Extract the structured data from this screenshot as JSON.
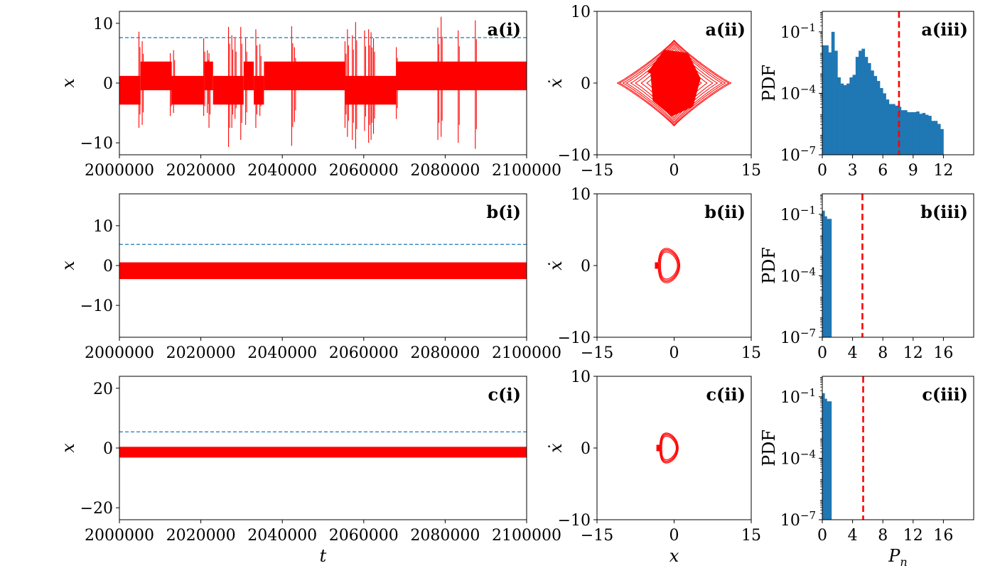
{
  "colors": {
    "series": "#ff0000",
    "threshold_line": "#1f77b4",
    "histogram": "#1f77b4",
    "threshold_marker": "#ff0000"
  },
  "chart_data": [
    {
      "id": "a-i",
      "type": "line",
      "panel_label": "a(i)",
      "xlabel": "",
      "ylabel": "x",
      "xlim": [
        2000000,
        2100000
      ],
      "ylim": [
        -12,
        12
      ],
      "xticks": [
        2000000,
        2020000,
        2040000,
        2060000,
        2080000,
        2100000
      ],
      "xtick_labels": [
        "2000000",
        "2020000",
        "2040000",
        "2060000",
        "2080000",
        "2100000"
      ],
      "yticks": [
        -10,
        0,
        10
      ],
      "ytick_labels": [
        "−10",
        "0",
        "10"
      ],
      "threshold": 7.6,
      "regime_levels": {
        "low": [
          -3.6,
          1.2
        ],
        "high": [
          -1.2,
          3.6
        ]
      },
      "regimes": [
        {
          "t0": 2000000,
          "t1": 2005200,
          "mode": "low"
        },
        {
          "t0": 2005200,
          "t1": 2012800,
          "mode": "high"
        },
        {
          "t0": 2012800,
          "t1": 2020800,
          "mode": "low"
        },
        {
          "t0": 2020800,
          "t1": 2023000,
          "mode": "high"
        },
        {
          "t0": 2023000,
          "t1": 2030500,
          "mode": "low"
        },
        {
          "t0": 2030500,
          "t1": 2033000,
          "mode": "high"
        },
        {
          "t0": 2033000,
          "t1": 2035500,
          "mode": "low"
        },
        {
          "t0": 2035500,
          "t1": 2042500,
          "mode": "high"
        },
        {
          "t0": 2042500,
          "t1": 2055500,
          "mode": "high"
        },
        {
          "t0": 2055500,
          "t1": 2068000,
          "mode": "low"
        },
        {
          "t0": 2068000,
          "t1": 2100000,
          "mode": "high"
        }
      ],
      "bursts": [
        {
          "t": 2004800,
          "min": -7.5,
          "max": 8.6
        },
        {
          "t": 2005600,
          "min": -7.0,
          "max": 7.0
        },
        {
          "t": 2012500,
          "min": -5.5,
          "max": 5.0
        },
        {
          "t": 2013300,
          "min": -5.0,
          "max": 5.5
        },
        {
          "t": 2020700,
          "min": -5.5,
          "max": 7.5
        },
        {
          "t": 2021600,
          "min": -5.0,
          "max": 5.5
        },
        {
          "t": 2022000,
          "min": -7.5,
          "max": 5.0
        },
        {
          "t": 2026800,
          "min": -10.7,
          "max": 9.4
        },
        {
          "t": 2027600,
          "min": -7.5,
          "max": 8.0
        },
        {
          "t": 2028400,
          "min": -6.0,
          "max": 7.5
        },
        {
          "t": 2029800,
          "min": -9.5,
          "max": 9.4
        },
        {
          "t": 2031000,
          "min": -7.0,
          "max": 7.5
        },
        {
          "t": 2033500,
          "min": -7.5,
          "max": 9.0
        },
        {
          "t": 2034500,
          "min": -5.5,
          "max": 6.5
        },
        {
          "t": 2042300,
          "min": -10.5,
          "max": 9.5
        },
        {
          "t": 2043000,
          "min": -6.5,
          "max": 6.0
        },
        {
          "t": 2055400,
          "min": -7.5,
          "max": 7.0
        },
        {
          "t": 2056000,
          "min": -9.0,
          "max": 9.0
        },
        {
          "t": 2057200,
          "min": -9.5,
          "max": 8.0
        },
        {
          "t": 2058000,
          "min": -11.0,
          "max": 10.2
        },
        {
          "t": 2060200,
          "min": -8.0,
          "max": 8.8
        },
        {
          "t": 2061200,
          "min": -10.0,
          "max": 9.0
        },
        {
          "t": 2061800,
          "min": -9.5,
          "max": 8.5
        },
        {
          "t": 2062400,
          "min": -8.5,
          "max": 7.5
        },
        {
          "t": 2068000,
          "min": -6.0,
          "max": 6.0
        },
        {
          "t": 2078200,
          "min": -9.5,
          "max": 9.3
        },
        {
          "t": 2079000,
          "min": -9.0,
          "max": 11.1
        },
        {
          "t": 2083200,
          "min": -10.0,
          "max": 8.8
        },
        {
          "t": 2087400,
          "min": -11.0,
          "max": 10.5
        }
      ]
    },
    {
      "id": "a-ii",
      "type": "line",
      "panel_label": "a(ii)",
      "xlabel": "",
      "ylabel": "ẋ",
      "xlim": [
        -15,
        15
      ],
      "ylim": [
        -10,
        10
      ],
      "xticks": [
        -15,
        0,
        15
      ],
      "xtick_labels": [
        "−15",
        "0",
        "15"
      ],
      "yticks": [
        -10,
        0,
        10
      ],
      "ytick_labels": [
        "−10",
        "0",
        "10"
      ],
      "attractor": "two-scroll",
      "x_amplitude": 11.1,
      "v_amplitude": 6.0
    },
    {
      "id": "a-iii",
      "type": "bar",
      "panel_label": "a(iii)",
      "xlabel": "",
      "ylabel": "PDF",
      "yscale": "log",
      "xlim": [
        0,
        15
      ],
      "ylim": [
        1e-07,
        1
      ],
      "xticks": [
        0,
        3,
        6,
        9,
        12
      ],
      "xtick_labels": [
        "0",
        "3",
        "6",
        "9",
        "12"
      ],
      "yticks": [
        1e-07,
        0.0001,
        0.1
      ],
      "ytick_labels": [
        "10^-7",
        "10^-4",
        "10^-1"
      ],
      "bin_width": 0.3,
      "threshold": 7.6,
      "bin_values": [
        0.022,
        0.022,
        0.01,
        0.1,
        0.012,
        0.0006,
        0.0003,
        0.00025,
        0.0003,
        0.0006,
        0.0008,
        0.006,
        0.012,
        0.015,
        0.006,
        0.003,
        0.0013,
        0.0007,
        0.0004,
        0.00018,
        0.0001,
        5e-05,
        3e-05,
        3e-05,
        2.5e-05,
        2.2e-05,
        1.5e-05,
        1.5e-05,
        1.2e-05,
        1.2e-05,
        1.2e-05,
        1.3e-05,
        1e-05,
        1.1e-05,
        9e-06,
        8e-06,
        4.5e-06,
        4.5e-06,
        3.2e-06,
        1.8e-06
      ]
    },
    {
      "id": "b-i",
      "type": "line",
      "panel_label": "b(i)",
      "xlabel": "",
      "ylabel": "x",
      "xlim": [
        2000000,
        2100000
      ],
      "ylim": [
        -18,
        18
      ],
      "xticks": [
        2000000,
        2020000,
        2040000,
        2060000,
        2080000,
        2100000
      ],
      "xtick_labels": [
        "2000000",
        "2020000",
        "2040000",
        "2060000",
        "2080000",
        "2100000"
      ],
      "yticks": [
        -10,
        0,
        10
      ],
      "ytick_labels": [
        "−10",
        "0",
        "10"
      ],
      "threshold": 5.3,
      "regime_levels": {
        "low": [
          -3.4,
          0.8
        ]
      },
      "regimes": [
        {
          "t0": 2000000,
          "t1": 2100000,
          "mode": "low"
        }
      ],
      "bursts": []
    },
    {
      "id": "b-ii",
      "type": "line",
      "panel_label": "b(ii)",
      "xlabel": "",
      "ylabel": "ẋ",
      "xlim": [
        -15,
        15
      ],
      "ylim": [
        -10,
        10
      ],
      "xticks": [
        -15,
        0,
        15
      ],
      "xtick_labels": [
        "−15",
        "0",
        "15"
      ],
      "yticks": [
        -10,
        0,
        10
      ],
      "ytick_labels": [
        "−10",
        "0",
        "10"
      ],
      "attractor": "single-loop",
      "x_range": [
        -3.6,
        0.6
      ],
      "v_amplitude": 2.4
    },
    {
      "id": "b-iii",
      "type": "bar",
      "panel_label": "b(iii)",
      "xlabel": "",
      "ylabel": "PDF",
      "yscale": "log",
      "xlim": [
        0,
        20
      ],
      "ylim": [
        1e-07,
        1
      ],
      "xticks": [
        0,
        4,
        8,
        12,
        16
      ],
      "xtick_labels": [
        "0",
        "4",
        "8",
        "12",
        "16"
      ],
      "yticks": [
        1e-07,
        0.0001,
        0.1
      ],
      "ytick_labels": [
        "10^-7",
        "10^-4",
        "10^-1"
      ],
      "bin_width": 0.3,
      "threshold": 5.3,
      "bin_values": [
        0.15,
        0.08,
        0.06,
        0.06
      ]
    },
    {
      "id": "c-i",
      "type": "line",
      "panel_label": "c(i)",
      "xlabel": "t",
      "ylabel": "x",
      "xlim": [
        2000000,
        2100000
      ],
      "ylim": [
        -24,
        24
      ],
      "xticks": [
        2000000,
        2020000,
        2040000,
        2060000,
        2080000,
        2100000
      ],
      "xtick_labels": [
        "2000000",
        "2020000",
        "2040000",
        "2060000",
        "2080000",
        "2100000"
      ],
      "yticks": [
        -20,
        0,
        20
      ],
      "ytick_labels": [
        "−20",
        "0",
        "20"
      ],
      "threshold": 5.4,
      "regime_levels": {
        "low": [
          -3.2,
          0.4
        ]
      },
      "regimes": [
        {
          "t0": 2000000,
          "t1": 2100000,
          "mode": "low"
        }
      ],
      "bursts": []
    },
    {
      "id": "c-ii",
      "type": "line",
      "panel_label": "c(ii)",
      "xlabel": "x",
      "ylabel": "ẋ",
      "xlim": [
        -15,
        15
      ],
      "ylim": [
        -10,
        10
      ],
      "xticks": [
        -15,
        0,
        15
      ],
      "xtick_labels": [
        "−15",
        "0",
        "15"
      ],
      "yticks": [
        -10,
        0,
        10
      ],
      "ytick_labels": [
        "−10",
        "0",
        "10"
      ],
      "attractor": "single-loop",
      "x_range": [
        -3.3,
        0.3
      ],
      "v_amplitude": 2.1
    },
    {
      "id": "c-iii",
      "type": "bar",
      "panel_label": "c(iii)",
      "xlabel": "P_n",
      "ylabel": "PDF",
      "yscale": "log",
      "xlim": [
        0,
        20
      ],
      "ylim": [
        1e-07,
        1
      ],
      "xticks": [
        0,
        4,
        8,
        12,
        16
      ],
      "xtick_labels": [
        "0",
        "4",
        "8",
        "12",
        "16"
      ],
      "yticks": [
        1e-07,
        0.0001,
        0.1
      ],
      "ytick_labels": [
        "10^-7",
        "10^-4",
        "10^-1"
      ],
      "bin_width": 0.3,
      "threshold": 5.4,
      "bin_values": [
        0.15,
        0.08,
        0.06,
        0.06
      ]
    }
  ]
}
